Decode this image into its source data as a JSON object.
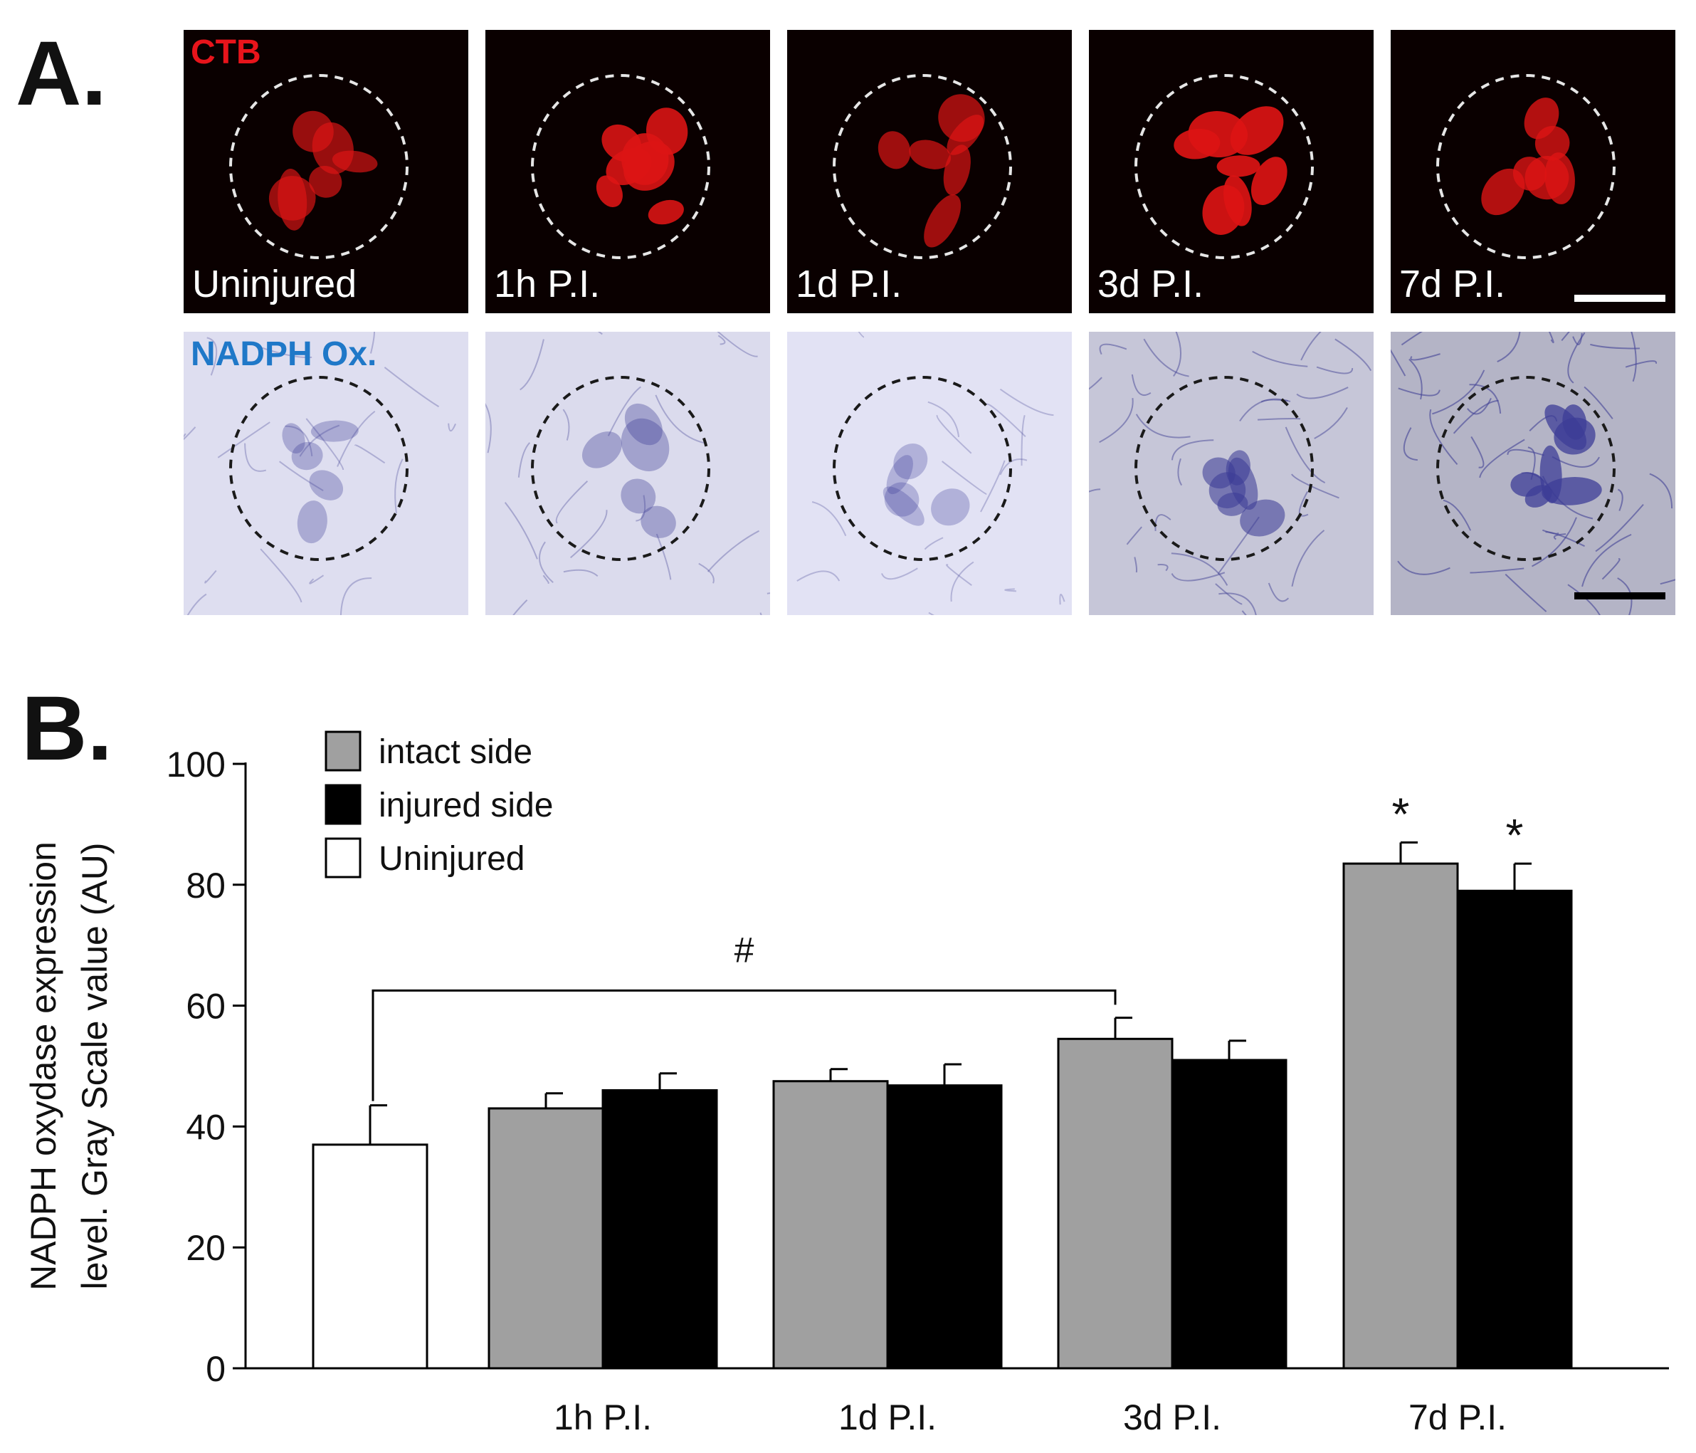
{
  "panel_a": {
    "letter": "A.",
    "rows": [
      {
        "stain": "CTB",
        "stain_color": "#e8141b",
        "timepoints": [
          "Uninjured",
          "1h P.I.",
          "1d P.I.",
          "3d P.I.",
          "7d P.I."
        ]
      },
      {
        "stain": "NADPH Ox.",
        "stain_color": "#1f78c8",
        "timepoints": [
          "",
          "",
          "",
          "",
          ""
        ]
      }
    ],
    "ctb_intensity": [
      0.55,
      0.9,
      0.6,
      0.95,
      0.75
    ],
    "nadph_intensity": [
      0.25,
      0.3,
      0.2,
      0.6,
      0.85
    ]
  },
  "panel_b": {
    "letter": "B."
  },
  "chart_data": {
    "type": "bar",
    "categories": [
      "",
      "1h P.I.",
      "1d P.I.",
      "3d P.I.",
      "7d P.I."
    ],
    "series": [
      {
        "name": "intact side",
        "color": "#a0a0a0",
        "values": [
          null,
          43,
          47.5,
          54.5,
          83.5
        ],
        "errors": [
          null,
          2.5,
          2,
          3.5,
          3.5
        ]
      },
      {
        "name": "injured side",
        "color": "#000000",
        "values": [
          null,
          46,
          46.8,
          51,
          79
        ],
        "errors": [
          null,
          2.8,
          3.5,
          3.2,
          4.5
        ]
      },
      {
        "name": "Uninjured",
        "color": "#ffffff",
        "values": [
          37,
          null,
          null,
          null,
          null
        ],
        "errors": [
          6.5,
          null,
          null,
          null,
          null
        ]
      }
    ],
    "ylabel_lines": [
      "NADPH oxydase expression",
      "level. Gray Scale value (AU)"
    ],
    "xlabel": "",
    "ylim": [
      0,
      100
    ],
    "yticks": [
      0,
      20,
      40,
      60,
      80,
      100
    ],
    "grid": false,
    "legend_position": "top-left",
    "annotations": [
      {
        "text": "#",
        "type": "bracket",
        "from_category": 0,
        "to_category": 3
      },
      {
        "text": "*",
        "category": 4,
        "series": "intact side"
      },
      {
        "text": "*",
        "category": 4,
        "series": "injured side"
      }
    ]
  }
}
